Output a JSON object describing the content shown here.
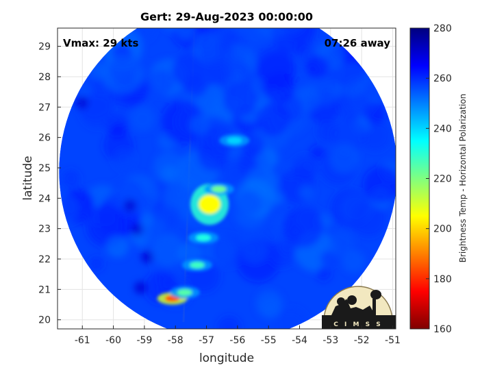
{
  "chart_data": {
    "type": "heatmap",
    "title": "Gert: 29-Aug-2023 00:00:00",
    "xlabel": "longitude",
    "ylabel": "latitude",
    "xlim": [
      -61.8,
      -50.9
    ],
    "ylim": [
      19.7,
      29.6
    ],
    "xticks": [
      -61,
      -60,
      -59,
      -58,
      -57,
      -56,
      -55,
      -54,
      -53,
      -52,
      -51
    ],
    "yticks": [
      20,
      21,
      22,
      23,
      24,
      25,
      26,
      27,
      28,
      29
    ],
    "grid": true,
    "annotations": {
      "left": "Vmax: 29 kts",
      "right": "07:26 away"
    },
    "colorbar": {
      "label": "Brightness Temp - Horizontal Polarization",
      "min": 160,
      "max": 280,
      "ticks": [
        160,
        180,
        200,
        220,
        240,
        260,
        280
      ],
      "colormap": [
        "#7f0000",
        "#ff0000",
        "#ff8000",
        "#ffff00",
        "#80ff80",
        "#00ffff",
        "#0080ff",
        "#0000ff",
        "#00007f"
      ]
    },
    "swath": {
      "shape": "circle",
      "center_lon": -56.3,
      "center_lat": 24.9,
      "background_value": 257
    },
    "features": [
      {
        "name": "main convection",
        "lon": -56.9,
        "lat": 23.8,
        "value": 205
      },
      {
        "name": "northern band",
        "lon": -56.6,
        "lat": 24.3,
        "value": 222
      },
      {
        "name": "central band",
        "lon": -57.1,
        "lat": 22.7,
        "value": 232
      },
      {
        "name": "southern band",
        "lon": -58.1,
        "lat": 20.7,
        "value": 185
      },
      {
        "name": "southern band edge",
        "lon": -57.7,
        "lat": 20.9,
        "value": 225
      },
      {
        "name": "mid band",
        "lon": -57.3,
        "lat": 21.8,
        "value": 228
      },
      {
        "name": "northern rainband",
        "lon": -56.1,
        "lat": 25.9,
        "value": 240
      }
    ],
    "logo": {
      "text": "CIMSS"
    }
  }
}
